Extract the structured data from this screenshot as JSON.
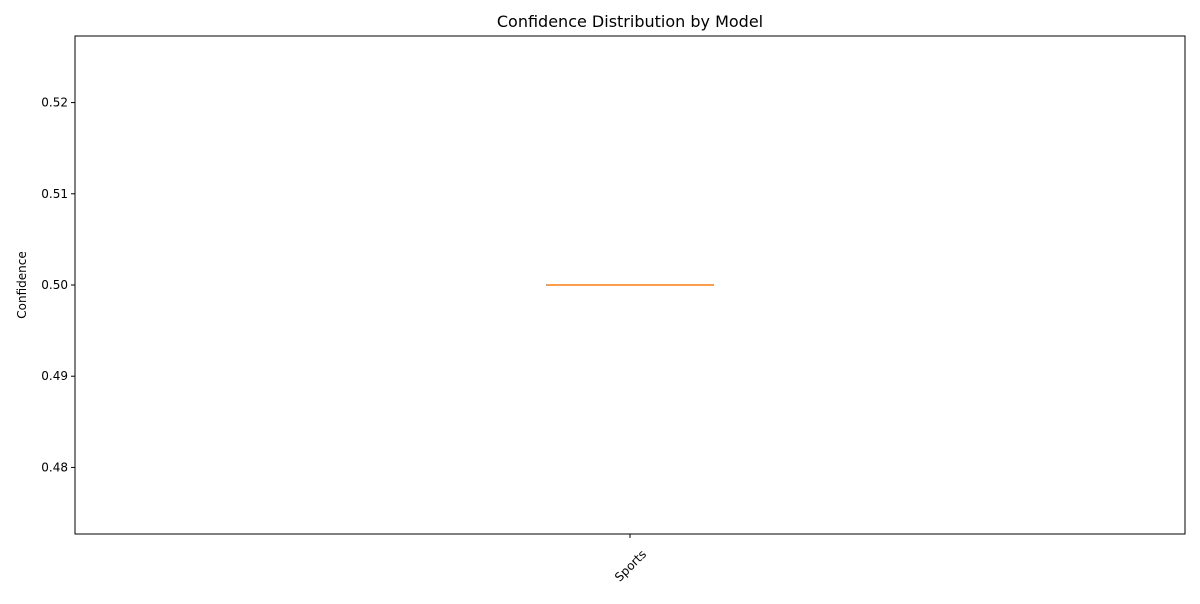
{
  "chart_data": {
    "type": "box",
    "title": "Confidence Distribution by Model",
    "xlabel": "",
    "ylabel": "Confidence",
    "ylim": [
      0.4727,
      0.5273
    ],
    "yticks": [
      0.48,
      0.49,
      0.5,
      0.51,
      0.52
    ],
    "ytick_labels": [
      "0.48",
      "0.49",
      "0.50",
      "0.51",
      "0.52"
    ],
    "categories": [
      "Sports"
    ],
    "xtick_rotation_deg": 45,
    "grid": false,
    "legend": false,
    "boxes": [
      {
        "category": "Sports",
        "min": 0.5,
        "q1": 0.5,
        "median": 0.5,
        "q3": 0.5,
        "max": 0.5
      }
    ],
    "colors": {
      "box": "#000000",
      "median": "#ff7f0e",
      "axes": "#000000"
    }
  }
}
